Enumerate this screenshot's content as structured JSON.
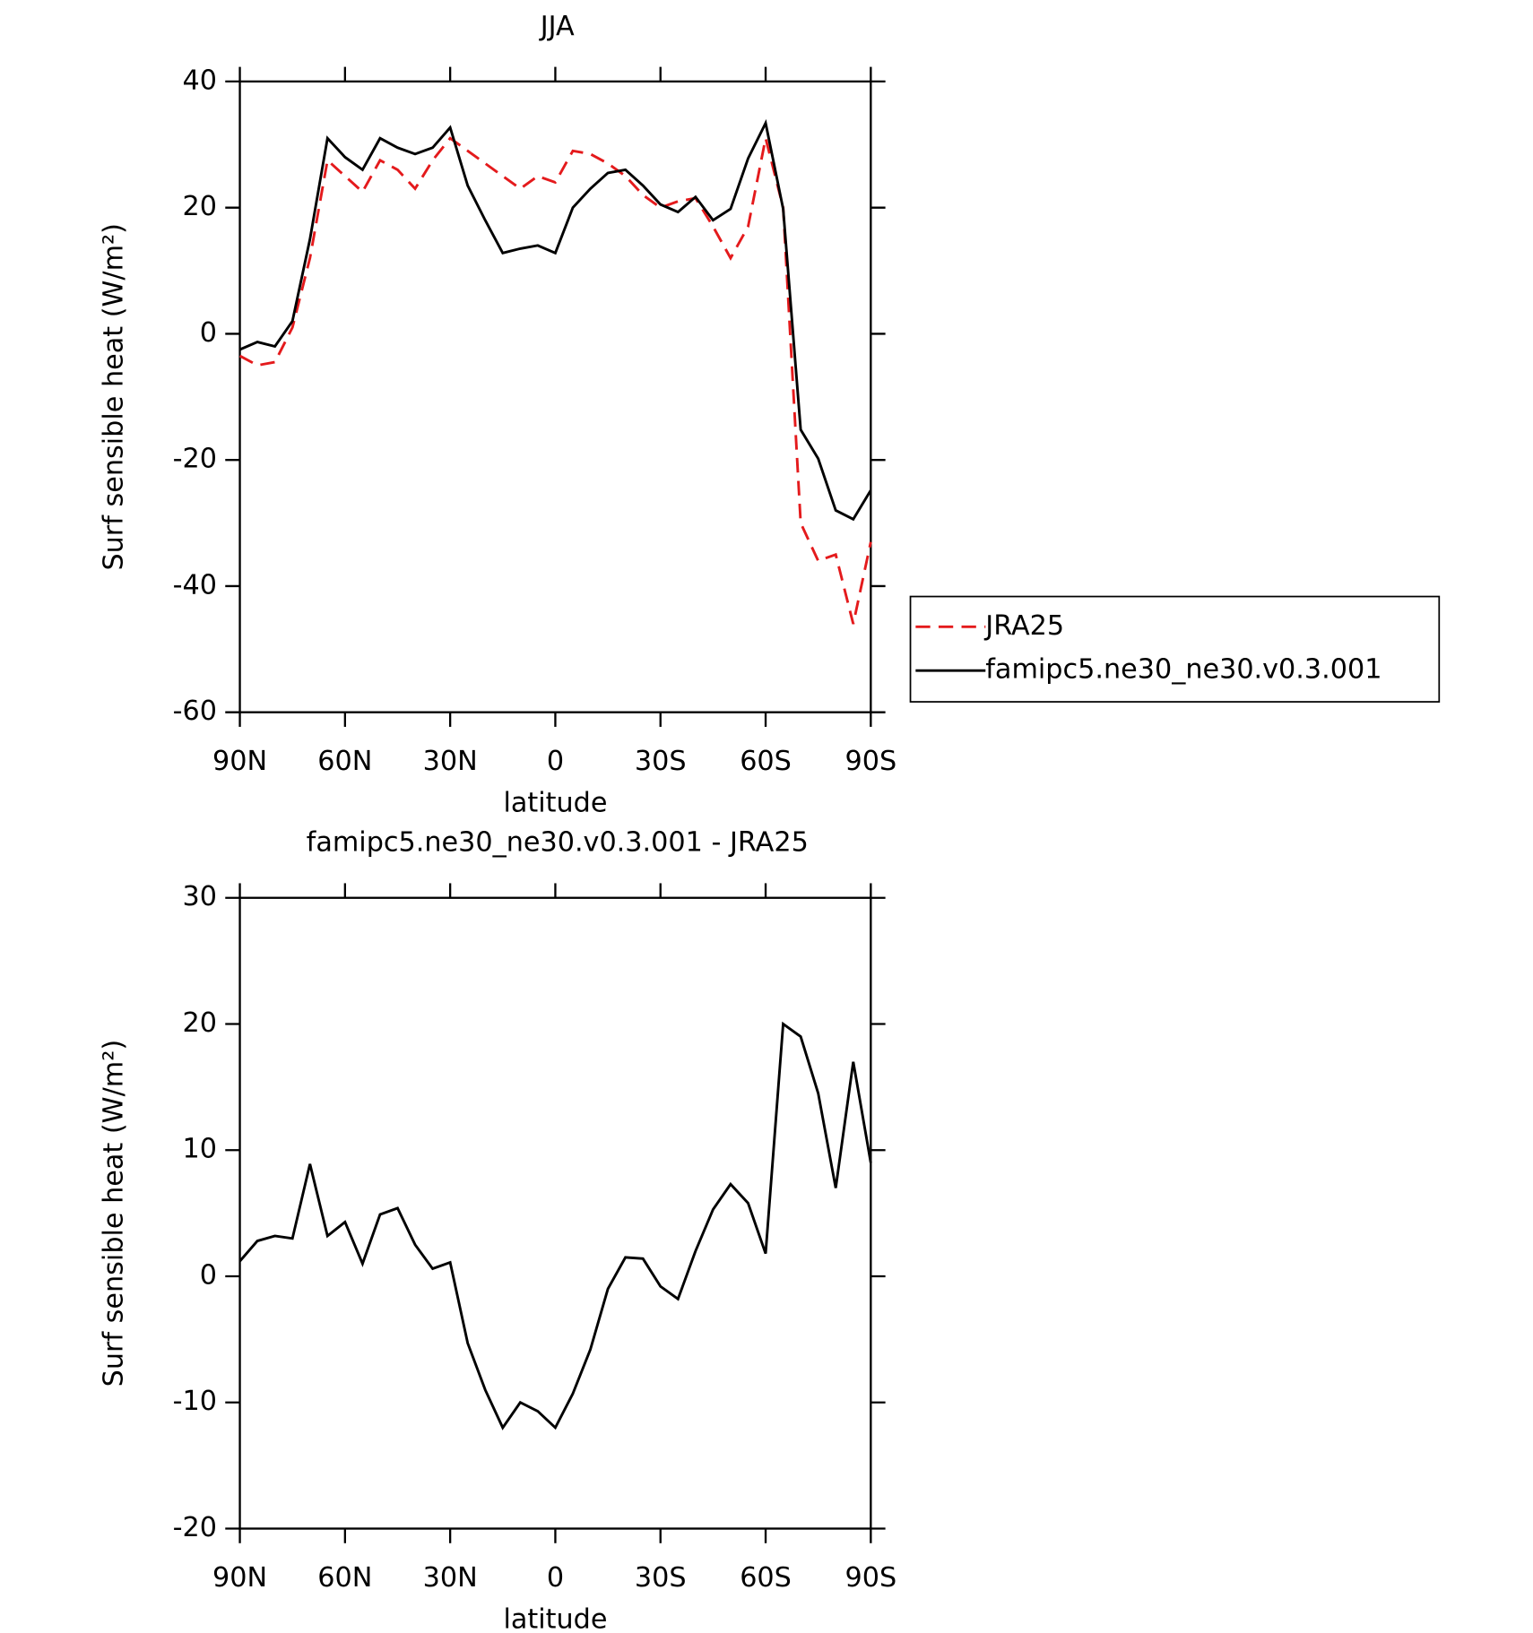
{
  "chart_data": [
    {
      "type": "line",
      "title": "JJA",
      "xlabel": "latitude",
      "ylabel": "Surf sensible heat (W/m²)",
      "x": [
        90,
        85,
        80,
        75,
        70,
        65,
        60,
        55,
        50,
        45,
        40,
        35,
        30,
        25,
        20,
        15,
        10,
        5,
        0,
        -5,
        -10,
        -15,
        -20,
        -25,
        -30,
        -35,
        -40,
        -45,
        -50,
        -55,
        -60,
        -65,
        -70,
        -75,
        -80,
        -85,
        -90
      ],
      "series": [
        {
          "name": "JRA25",
          "color": "#e41a1c",
          "dash": true,
          "values": [
            -3.5,
            -5,
            -4.5,
            1,
            12,
            27.5,
            25,
            22.5,
            27.5,
            26,
            23,
            27.5,
            31,
            29,
            27,
            25,
            23,
            25,
            24,
            29,
            28.5,
            27,
            25,
            22,
            20,
            21,
            21.5,
            17,
            12,
            17,
            31,
            20,
            -30,
            -36,
            -35,
            -46,
            -33
          ]
        },
        {
          "name": "famipc5.ne30_ne30.v0.3.001",
          "color": "#000000",
          "dash": false,
          "values": [
            -2.5,
            -1.3,
            -2,
            2,
            15,
            31,
            28,
            26,
            31,
            29.5,
            28.5,
            29.5,
            32.7,
            23.5,
            18,
            12.8,
            13.5,
            14,
            12.8,
            20,
            23,
            25.5,
            26,
            23.5,
            20.5,
            19.3,
            21.7,
            18,
            19.8,
            27.8,
            33.4,
            19.8,
            -15.2,
            -19.8,
            -28,
            -29.4,
            -24.8
          ]
        }
      ],
      "xlim": [
        90,
        -90
      ],
      "xticks": [
        {
          "value": 90,
          "label": "90N"
        },
        {
          "value": 60,
          "label": "60N"
        },
        {
          "value": 30,
          "label": "30N"
        },
        0,
        {
          "value": -30,
          "label": "30S"
        },
        {
          "value": -60,
          "label": "60S"
        },
        {
          "value": -90,
          "label": "90S"
        }
      ],
      "ylim": [
        -60,
        40
      ],
      "yticks": [
        40,
        20,
        0,
        -20,
        -40,
        -60
      ],
      "legend": "outside right"
    },
    {
      "type": "line",
      "title": "famipc5.ne30_ne30.v0.3.001 - JRA25",
      "xlabel": "latitude",
      "ylabel": "Surf sensible heat (W/m²)",
      "x": [
        90,
        85,
        80,
        75,
        70,
        65,
        60,
        55,
        50,
        45,
        40,
        35,
        30,
        25,
        20,
        15,
        10,
        5,
        0,
        -5,
        -10,
        -15,
        -20,
        -25,
        -30,
        -35,
        -40,
        -45,
        -50,
        -55,
        -60,
        -65,
        -70,
        -75,
        -80,
        -85,
        -90
      ],
      "series": [
        {
          "color": "#000000",
          "dash": false,
          "values": [
            1.2,
            2.8,
            3.2,
            3,
            8.9,
            3.2,
            4.3,
            1,
            4.9,
            5.4,
            2.5,
            0.6,
            1.1,
            -5.3,
            -9,
            -12,
            -10,
            -10.7,
            -12,
            -9.3,
            -5.8,
            -1,
            1.5,
            1.4,
            -0.8,
            -1.8,
            2,
            5.3,
            7.3,
            5.8,
            1.8,
            20,
            19,
            14.5,
            7,
            17,
            9
          ]
        }
      ],
      "xlim": [
        90,
        -90
      ],
      "xticks": [
        {
          "value": 90,
          "label": "90N"
        },
        {
          "value": 60,
          "label": "60N"
        },
        {
          "value": 30,
          "label": "30N"
        },
        0,
        {
          "value": -30,
          "label": "30S"
        },
        {
          "value": -60,
          "label": "60S"
        },
        {
          "value": -90,
          "label": "90S"
        }
      ],
      "ylim": [
        -20,
        30
      ],
      "yticks": [
        30,
        20,
        10,
        0,
        -10,
        -20
      ]
    }
  ]
}
